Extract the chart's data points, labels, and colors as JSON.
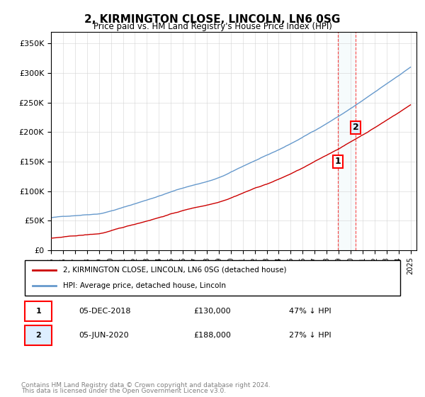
{
  "title": "2, KIRMINGTON CLOSE, LINCOLN, LN6 0SG",
  "subtitle": "Price paid vs. HM Land Registry's House Price Index (HPI)",
  "ylabel": "",
  "ylim": [
    0,
    370000
  ],
  "yticks": [
    0,
    50000,
    100000,
    150000,
    200000,
    250000,
    300000,
    350000
  ],
  "ytick_labels": [
    "£0",
    "£50K",
    "£100K",
    "£150K",
    "£200K",
    "£250K",
    "£300K",
    "£350K"
  ],
  "purchase1": {
    "date": "2018-12-05",
    "price": 130000,
    "label": "1",
    "x": 2018.92
  },
  "purchase2": {
    "date": "2020-06-05",
    "price": 188000,
    "label": "2",
    "x": 2020.42
  },
  "hpi_color": "#6699cc",
  "price_color": "#cc0000",
  "legend_label1": "2, KIRMINGTON CLOSE, LINCOLN, LN6 0SG (detached house)",
  "legend_label2": "HPI: Average price, detached house, Lincoln",
  "footnote1": "Contains HM Land Registry data © Crown copyright and database right 2024.",
  "footnote2": "This data is licensed under the Open Government Licence v3.0.",
  "table_row1": [
    "1",
    "05-DEC-2018",
    "£130,000",
    "47% ↓ HPI"
  ],
  "table_row2": [
    "2",
    "05-JUN-2020",
    "£188,000",
    "27% ↓ HPI"
  ]
}
